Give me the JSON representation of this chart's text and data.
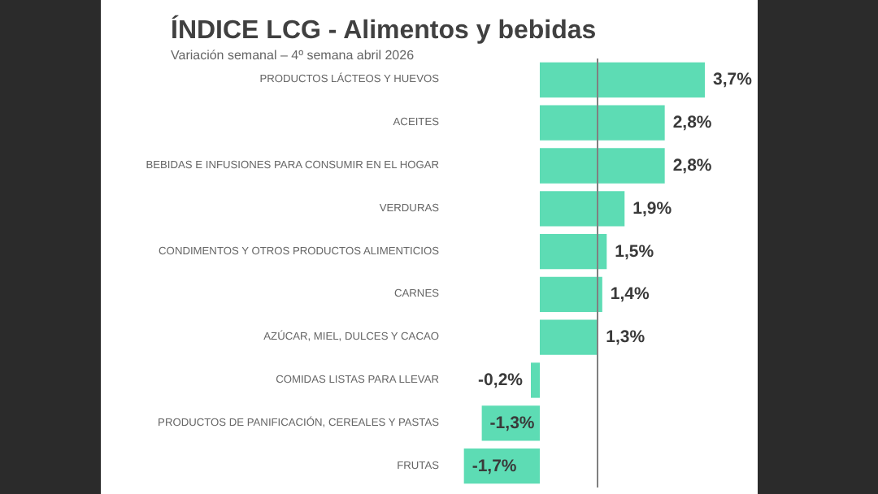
{
  "chart_data": {
    "type": "bar",
    "orientation": "horizontal",
    "title": "ÍNDICE LCG - Alimentos y bebidas",
    "subtitle": "Variación semanal – 4º semana abril 2026",
    "categories": [
      "PRODUCTOS LÁCTEOS Y HUEVOS",
      "ACEITES",
      "BEBIDAS E INFUSIONES PARA CONSUMIR EN EL HOGAR",
      "VERDURAS",
      "CONDIMENTOS Y OTROS PRODUCTOS ALIMENTICIOS",
      "CARNES",
      "AZÚCAR, MIEL, DULCES Y CACAO",
      "COMIDAS LISTAS PARA LLEVAR",
      "PRODUCTOS DE PANIFICACIÓN, CEREALES Y PASTAS",
      "FRUTAS"
    ],
    "values": [
      3.7,
      2.8,
      2.8,
      1.9,
      1.5,
      1.4,
      1.3,
      -0.2,
      -1.3,
      -1.7
    ],
    "value_labels": [
      "3,7%",
      "2,8%",
      "2,8%",
      "1,9%",
      "1,5%",
      "1,4%",
      "1,3%",
      "-0,2%",
      "-1,3%",
      "-1,7%"
    ],
    "color": "#5ddcb4",
    "ref_lines": [
      {
        "axis": "x",
        "value": 1.3,
        "color": "#808080"
      }
    ]
  }
}
